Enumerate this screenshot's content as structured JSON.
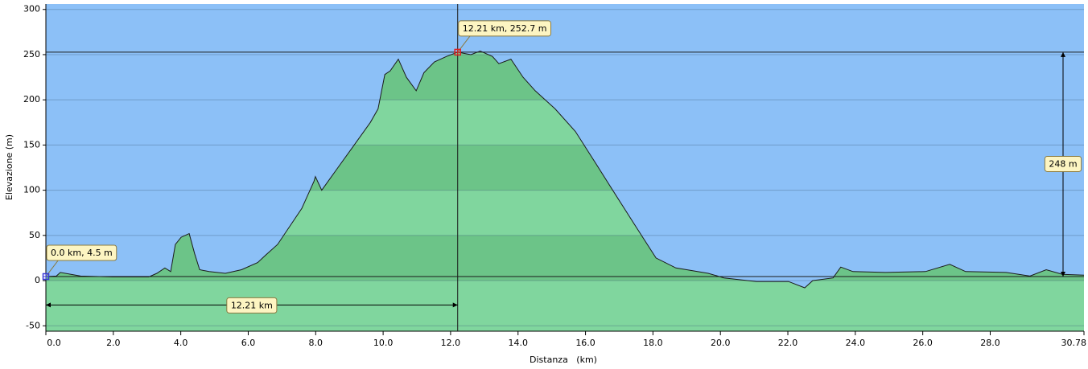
{
  "chart_data": {
    "type": "area",
    "x_label": "Distanza   (km)",
    "y_label": "Elevazione (m)",
    "x": [
      0,
      0.31,
      0.43,
      1.03,
      1.98,
      3.05,
      3.29,
      3.53,
      3.7,
      3.84,
      4.01,
      4.25,
      4.41,
      4.56,
      4.84,
      5.32,
      5.8,
      6.28,
      6.51,
      6.87,
      7.23,
      7.59,
      7.95,
      7.99,
      8.18,
      8.66,
      9.14,
      9.62,
      9.85,
      10.05,
      10.21,
      10.45,
      10.69,
      10.98,
      11.21,
      11.52,
      11.88,
      12.21,
      12.6,
      12.88,
      13.24,
      13.43,
      13.79,
      14.15,
      14.51,
      15.1,
      15.7,
      16.3,
      16.89,
      17.49,
      18.09,
      18.68,
      19.64,
      20.11,
      21.07,
      22.02,
      22.5,
      22.74,
      23.34,
      23.57,
      23.93,
      24.89,
      26.08,
      26.8,
      27.27,
      28.47,
      29.18,
      29.66,
      30.14,
      30.78
    ],
    "values": [
      4.5,
      5,
      9,
      5,
      4,
      4,
      8,
      14,
      10,
      40,
      48,
      52,
      30,
      12,
      10,
      8,
      12,
      20,
      28,
      40,
      60,
      80,
      110,
      115,
      100,
      125,
      150,
      175,
      190,
      228,
      232,
      245,
      225,
      210,
      230,
      242,
      248,
      252.7,
      250,
      254,
      248,
      240,
      245,
      225,
      210,
      190,
      165,
      130,
      95,
      60,
      25,
      14,
      8,
      3,
      -1,
      -1,
      -8,
      0,
      3,
      15,
      10,
      9,
      10,
      18,
      10,
      9,
      5,
      12,
      7,
      6
    ],
    "color": "#80d69e",
    "band_color": "#6cc488",
    "background": "#8cc0f7",
    "xlim": [
      0,
      30.78
    ],
    "ylim": [
      -56,
      306
    ],
    "xticks": [
      {
        "value": 0,
        "label": "0.0"
      },
      {
        "value": 2,
        "label": "2.0"
      },
      {
        "value": 4,
        "label": "4.0"
      },
      {
        "value": 6,
        "label": "6.0"
      },
      {
        "value": 8,
        "label": "8.0"
      },
      {
        "value": 10,
        "label": "10.0"
      },
      {
        "value": 12,
        "label": "12.0"
      },
      {
        "value": 14,
        "label": "14.0"
      },
      {
        "value": 16,
        "label": "16.0"
      },
      {
        "value": 18,
        "label": "18.0"
      },
      {
        "value": 20,
        "label": "20.0"
      },
      {
        "value": 22,
        "label": "22.0"
      },
      {
        "value": 24,
        "label": "24.0"
      },
      {
        "value": 26,
        "label": "26.0"
      },
      {
        "value": 28,
        "label": "28.0"
      },
      30.78
    ],
    "yticks": [
      -50,
      0,
      50,
      100,
      150,
      200,
      250,
      300
    ],
    "grid": true,
    "markers": [
      {
        "x": 0,
        "y": 4.5,
        "label": "0.0 km, 4.5 m",
        "color": "#3a3ad8"
      },
      {
        "x": 12.21,
        "y": 252.7,
        "label": "12.21 km, 252.7 m",
        "color": "#e02020"
      }
    ],
    "measure_x": {
      "from": 0,
      "to": 12.21,
      "label": "12.21 km"
    },
    "measure_y": {
      "from": 4.5,
      "to": 252.7,
      "label": "248 m"
    }
  }
}
